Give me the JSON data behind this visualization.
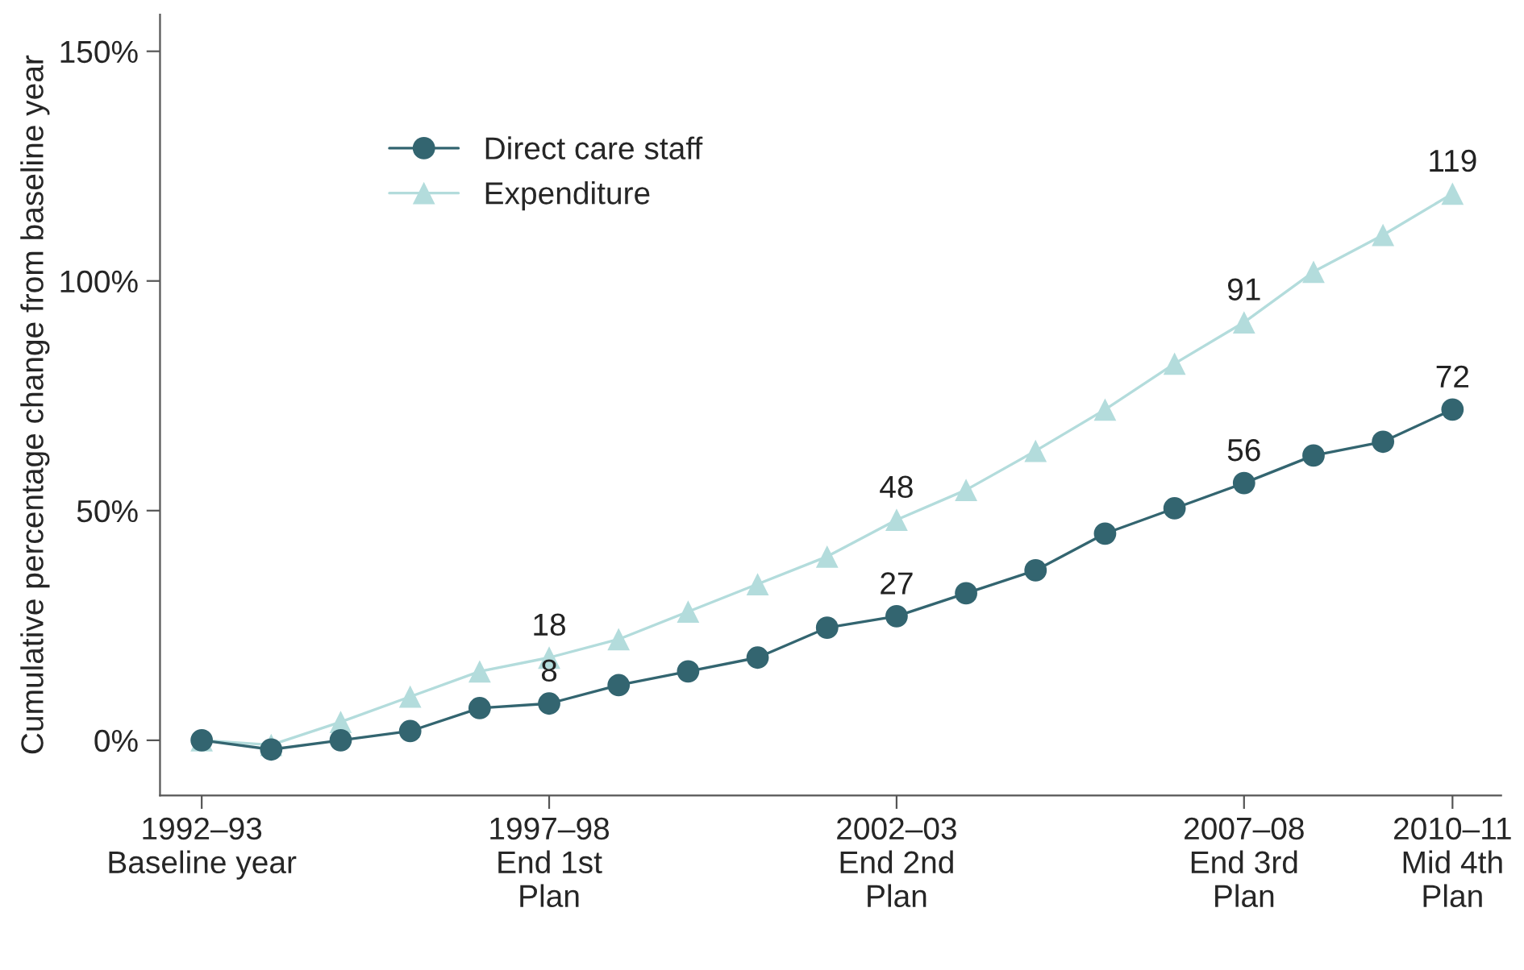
{
  "chart_data": {
    "type": "line",
    "ylabel": "Cumulative percentage change from baseline year",
    "categories": [
      "1992–93\nBaseline year",
      null,
      null,
      null,
      null,
      "1997–98\nEnd 1st\nPlan",
      null,
      null,
      null,
      null,
      "2002–03\nEnd 2nd\nPlan",
      null,
      null,
      null,
      null,
      "2007–08\nEnd 3rd\nPlan",
      null,
      null,
      "2010–11\nMid 4th\nPlan"
    ],
    "series": [
      {
        "name": "Direct care staff",
        "color": "#336570",
        "marker": "circle",
        "values": [
          0,
          -2,
          0,
          2,
          7,
          8,
          12,
          15,
          18,
          24.5,
          27,
          32,
          37,
          45,
          50.5,
          56,
          62,
          65,
          72
        ],
        "value_labels": [
          null,
          null,
          null,
          null,
          null,
          "8",
          null,
          null,
          null,
          null,
          "27",
          null,
          null,
          null,
          null,
          "56",
          null,
          null,
          "72"
        ]
      },
      {
        "name": "Expenditure",
        "color": "#b3dcdc",
        "marker": "triangle",
        "values": [
          0,
          -1,
          4,
          9.5,
          15,
          18,
          22,
          28,
          34,
          40,
          48,
          54.5,
          63,
          72,
          82,
          91,
          102,
          110,
          119
        ],
        "value_labels": [
          null,
          null,
          null,
          null,
          null,
          "18",
          null,
          null,
          null,
          null,
          "48",
          null,
          null,
          null,
          null,
          "91",
          null,
          null,
          "119"
        ]
      }
    ],
    "ylim": [
      -12,
      158
    ],
    "yticks": [
      {
        "value": 0,
        "label": "0%"
      },
      {
        "value": 50,
        "label": "50%"
      },
      {
        "value": 100,
        "label": "100%"
      },
      {
        "value": 150,
        "label": "150%"
      }
    ],
    "grid": false,
    "legend": "top left",
    "line_style": "solid"
  }
}
